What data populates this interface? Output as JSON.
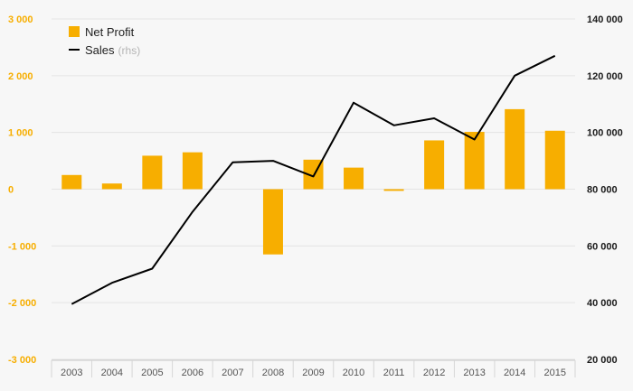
{
  "chart_data": {
    "type": "bar",
    "categories": [
      "2003",
      "2004",
      "2005",
      "2006",
      "2007",
      "2008",
      "2009",
      "2010",
      "2011",
      "2012",
      "2013",
      "2014",
      "2015"
    ],
    "series": [
      {
        "name": "Net Profit",
        "type": "bar",
        "axis": "left",
        "color": "#f7ae00",
        "values": [
          250,
          100,
          590,
          650,
          0,
          -1150,
          520,
          380,
          -30,
          860,
          1010,
          1410,
          1030
        ]
      },
      {
        "name": "Sales",
        "name_suffix": "(rhs)",
        "type": "line",
        "axis": "right",
        "color": "#000000",
        "values": [
          39500,
          47000,
          52000,
          72000,
          89500,
          90000,
          84500,
          110500,
          102500,
          105000,
          97500,
          120000,
          127000
        ]
      }
    ],
    "y_left": {
      "ylim": [
        -3000,
        3000
      ],
      "ticks": [
        -3000,
        -2000,
        -1000,
        0,
        1000,
        2000,
        3000
      ],
      "tick_labels": [
        "-3 000",
        "-2 000",
        "-1 000",
        "0",
        "1 000",
        "2 000",
        "3 000"
      ],
      "color": "#f7ae00"
    },
    "y_right": {
      "ylim": [
        20000,
        140000
      ],
      "ticks": [
        20000,
        40000,
        60000,
        80000,
        100000,
        120000,
        140000
      ],
      "tick_labels": [
        "20 000",
        "40 000",
        "60 000",
        "80 000",
        "100 000",
        "120 000",
        "140 000"
      ]
    },
    "title": "",
    "xlabel": "",
    "grid": true,
    "legend_position": "top-left"
  }
}
